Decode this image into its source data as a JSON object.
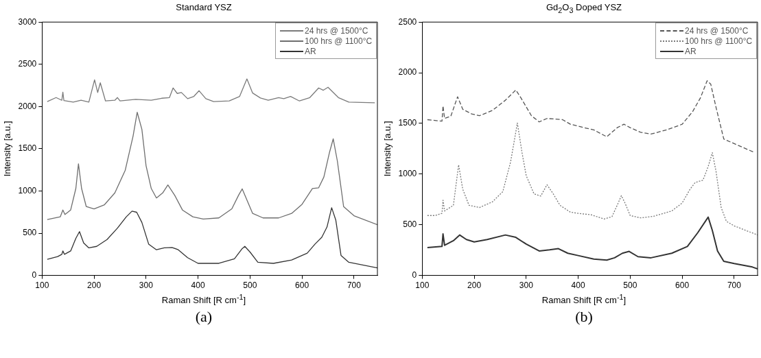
{
  "chart_data": [
    {
      "type": "line",
      "title": "Standard YSZ",
      "xlabel": "Raman Shift [R cm$^{-1}$]",
      "ylabel": "Intensity [a.u.]",
      "xlim": [
        100,
        745
      ],
      "ylim": [
        0,
        3000
      ],
      "xticks": [
        100,
        200,
        300,
        400,
        500,
        600,
        700
      ],
      "yticks": [
        0,
        500,
        1000,
        1500,
        2000,
        2500,
        3000
      ],
      "grid": false,
      "legend": "top right",
      "marker": "none",
      "annotations": [
        "(a)"
      ],
      "series": [
        {
          "name": "24 hrs @ 1500°C",
          "color": "#7a7a7a",
          "line_style": "solid",
          "x": [
            110,
            127,
            138,
            140,
            142,
            160,
            175,
            190,
            201,
            207,
            212,
            222,
            240,
            245,
            250,
            280,
            310,
            330,
            345,
            352,
            360,
            368,
            380,
            392,
            402,
            415,
            430,
            460,
            480,
            494,
            505,
            520,
            535,
            555,
            565,
            578,
            595,
            615,
            632,
            641,
            650,
            670,
            690,
            740
          ],
          "values": [
            2058,
            2106,
            2074,
            2170,
            2070,
            2053,
            2074,
            2053,
            2316,
            2166,
            2281,
            2066,
            2074,
            2106,
            2066,
            2085,
            2074,
            2098,
            2106,
            2220,
            2155,
            2166,
            2093,
            2120,
            2187,
            2093,
            2058,
            2066,
            2120,
            2327,
            2160,
            2101,
            2074,
            2106,
            2093,
            2120,
            2066,
            2106,
            2220,
            2193,
            2228,
            2106,
            2053,
            2045
          ]
        },
        {
          "name": "100 hrs @ 1100°C",
          "color": "#6e6e6e",
          "line_style": "solid",
          "x": [
            110,
            135,
            140,
            144,
            155,
            165,
            170,
            176,
            185,
            200,
            220,
            240,
            260,
            275,
            283,
            292,
            300,
            310,
            320,
            332,
            342,
            355,
            370,
            390,
            410,
            440,
            465,
            478,
            485,
            492,
            505,
            525,
            555,
            580,
            600,
            620,
            632,
            642,
            653,
            660,
            668,
            680,
            700,
            745
          ],
          "values": [
            662,
            694,
            775,
            721,
            775,
            1030,
            1321,
            1030,
            815,
            788,
            837,
            977,
            1246,
            1649,
            1932,
            1730,
            1300,
            1030,
            917,
            977,
            1071,
            950,
            775,
            694,
            667,
            681,
            788,
            950,
            1025,
            923,
            734,
            681,
            681,
            734,
            842,
            1030,
            1038,
            1165,
            1461,
            1617,
            1353,
            815,
            707,
            600
          ]
        },
        {
          "name": "AR",
          "color": "#333333",
          "line_style": "solid",
          "x": [
            110,
            130,
            138,
            140,
            143,
            155,
            165,
            172,
            180,
            190,
            205,
            225,
            245,
            262,
            273,
            282,
            292,
            305,
            320,
            335,
            350,
            362,
            380,
            400,
            440,
            470,
            485,
            490,
            500,
            515,
            545,
            580,
            610,
            625,
            638,
            648,
            657,
            665,
            675,
            690,
            745
          ],
          "values": [
            191,
            223,
            250,
            290,
            250,
            290,
            439,
            519,
            385,
            326,
            344,
            425,
            560,
            694,
            761,
            748,
            627,
            371,
            304,
            326,
            331,
            304,
            210,
            143,
            143,
            196,
            318,
            344,
            277,
            156,
            143,
            183,
            264,
            371,
            452,
            573,
            802,
            654,
            237,
            156,
            89
          ]
        }
      ]
    },
    {
      "type": "line",
      "title": "Gd$_{2}$O$_{3}$ Doped YSZ",
      "xlabel": "Raman Shift [R cm$^{-1}$]",
      "ylabel": "Intensity [a.u.]",
      "xlim": [
        100,
        745
      ],
      "ylim": [
        0,
        2500
      ],
      "xticks": [
        100,
        200,
        300,
        400,
        500,
        600,
        700
      ],
      "yticks": [
        0,
        500,
        1000,
        1500,
        2000,
        2500
      ],
      "grid": false,
      "legend": "top right",
      "marker": "none",
      "annotations": [
        "(b)"
      ],
      "series": [
        {
          "name": "24 hrs @ 1500°C",
          "color": "#555555",
          "line_style": "dashed",
          "x": [
            110,
            130,
            138,
            140,
            143,
            155,
            168,
            178,
            195,
            210,
            235,
            260,
            280,
            290,
            310,
            325,
            340,
            370,
            385,
            415,
            430,
            455,
            475,
            488,
            500,
            520,
            540,
            570,
            600,
            620,
            635,
            648,
            655,
            665,
            680,
            700,
            740
          ],
          "values": [
            1537,
            1526,
            1522,
            1673,
            1549,
            1571,
            1763,
            1639,
            1594,
            1576,
            1628,
            1729,
            1830,
            1751,
            1576,
            1515,
            1549,
            1537,
            1492,
            1454,
            1436,
            1368,
            1458,
            1492,
            1458,
            1413,
            1395,
            1436,
            1492,
            1616,
            1751,
            1921,
            1887,
            1661,
            1346,
            1301,
            1211
          ]
        },
        {
          "name": "100 hrs @ 1100°C",
          "color": "#777777",
          "line_style": "dotted",
          "x": [
            110,
            125,
            138,
            140,
            143,
            160,
            170,
            178,
            190,
            210,
            235,
            255,
            270,
            283,
            292,
            300,
            315,
            328,
            340,
            352,
            365,
            385,
            400,
            425,
            450,
            465,
            477,
            483,
            490,
            500,
            520,
            545,
            580,
            600,
            615,
            625,
            640,
            650,
            658,
            665,
            675,
            685,
            700,
            745
          ],
          "values": [
            591,
            591,
            613,
            742,
            636,
            692,
            1091,
            850,
            692,
            670,
            726,
            827,
            1120,
            1504,
            1211,
            985,
            805,
            783,
            895,
            805,
            692,
            624,
            613,
            598,
            557,
            580,
            715,
            787,
            715,
            591,
            568,
            584,
            636,
            715,
            850,
            917,
            940,
            1075,
            1211,
            1030,
            670,
            534,
            489,
            399
          ]
        },
        {
          "name": "AR",
          "color": "#333333",
          "line_style": "solid",
          "x": [
            110,
            138,
            140,
            143,
            160,
            172,
            185,
            200,
            225,
            260,
            280,
            300,
            325,
            345,
            362,
            380,
            400,
            430,
            455,
            470,
            485,
            498,
            515,
            540,
            580,
            610,
            630,
            650,
            658,
            668,
            680,
            700,
            735,
            745
          ],
          "values": [
            275,
            286,
            410,
            297,
            343,
            399,
            354,
            331,
            354,
            399,
            376,
            309,
            241,
            252,
            264,
            219,
            196,
            162,
            151,
            174,
            219,
            237,
            185,
            174,
            219,
            286,
            422,
            575,
            444,
            241,
            140,
            117,
            83,
            65
          ]
        }
      ]
    }
  ]
}
